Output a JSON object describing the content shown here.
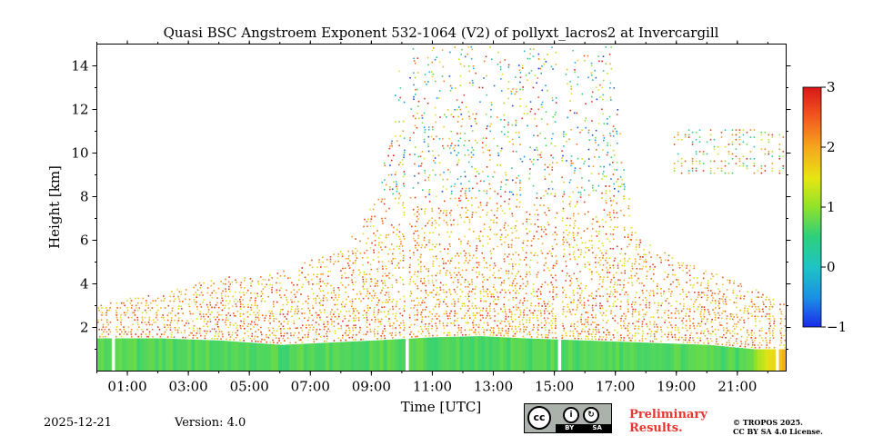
{
  "chart_data": {
    "type": "heatmap",
    "title": "Quasi BSC Angstroem Exponent 532-1064 (V2) of pollyxt_lacros2 at Invercargill",
    "xlabel": "Time [UTC]",
    "ylabel": "Height [km]",
    "xlim_hours": [
      0.0,
      22.6
    ],
    "ylim_km": [
      0,
      15
    ],
    "x_ticks": [
      {
        "hour": 1,
        "label": "01:00"
      },
      {
        "hour": 3,
        "label": "03:00"
      },
      {
        "hour": 5,
        "label": "05:00"
      },
      {
        "hour": 7,
        "label": "07:00"
      },
      {
        "hour": 9,
        "label": "09:00"
      },
      {
        "hour": 11,
        "label": "11:00"
      },
      {
        "hour": 13,
        "label": "13:00"
      },
      {
        "hour": 15,
        "label": "15:00"
      },
      {
        "hour": 17,
        "label": "17:00"
      },
      {
        "hour": 19,
        "label": "19:00"
      },
      {
        "hour": 21,
        "label": "21:00"
      }
    ],
    "y_ticks": [
      {
        "value": 2,
        "label": "2"
      },
      {
        "value": 4,
        "label": "4"
      },
      {
        "value": 6,
        "label": "6"
      },
      {
        "value": 8,
        "label": "8"
      },
      {
        "value": 10,
        "label": "10"
      },
      {
        "value": 12,
        "label": "12"
      },
      {
        "value": 14,
        "label": "14"
      }
    ],
    "colorbar": {
      "range": [
        -1,
        3
      ],
      "ticks": [
        {
          "value": 3,
          "label": "3"
        },
        {
          "value": 2,
          "label": "2"
        },
        {
          "value": 1,
          "label": "1"
        },
        {
          "value": 0,
          "label": "0"
        },
        {
          "value": -1,
          "label": "−1"
        }
      ]
    },
    "data_gaps_hours": [
      [
        0.45,
        0.55
      ],
      [
        10.05,
        10.2
      ],
      [
        15.05,
        15.2
      ],
      [
        22.2,
        22.3
      ]
    ],
    "boundary_layer_top_km": [
      [
        0,
        1.5
      ],
      [
        2,
        1.5
      ],
      [
        4,
        1.4
      ],
      [
        6,
        1.2
      ],
      [
        7.5,
        1.3
      ],
      [
        9,
        1.4
      ],
      [
        11,
        1.55
      ],
      [
        12.5,
        1.6
      ],
      [
        14,
        1.5
      ],
      [
        16,
        1.4
      ],
      [
        18,
        1.3
      ],
      [
        20,
        1.2
      ],
      [
        21.5,
        1.0
      ],
      [
        22.6,
        1.0
      ]
    ],
    "boundary_layer_value": 0.7,
    "aerosol_layer_top_km": [
      [
        0,
        3.0
      ],
      [
        2,
        3.5
      ],
      [
        4,
        4.2
      ],
      [
        6,
        4.5
      ],
      [
        8,
        5.5
      ],
      [
        9.2,
        8.0
      ],
      [
        10,
        14.8
      ],
      [
        16.8,
        14.8
      ],
      [
        17.5,
        6.5
      ],
      [
        19,
        5.0
      ],
      [
        21,
        4.0
      ],
      [
        22.6,
        3.0
      ]
    ],
    "aerosol_layer_value": 2.0,
    "cirrus_layer": {
      "hours": [
        18.9,
        22.6
      ],
      "km": [
        9.0,
        11.0
      ],
      "value": 1.5
    }
  },
  "footer": {
    "date": "2025-12-21",
    "version": "Version: 4.0",
    "license_badge": {
      "cc": "cc",
      "by": "BY",
      "sa": "SA"
    },
    "preliminary_line1": "Preliminary",
    "preliminary_line2": "Results.",
    "copyright_line1": "© TROPOS 2025.",
    "copyright_line2": "CC BY SA 4.0 License."
  }
}
